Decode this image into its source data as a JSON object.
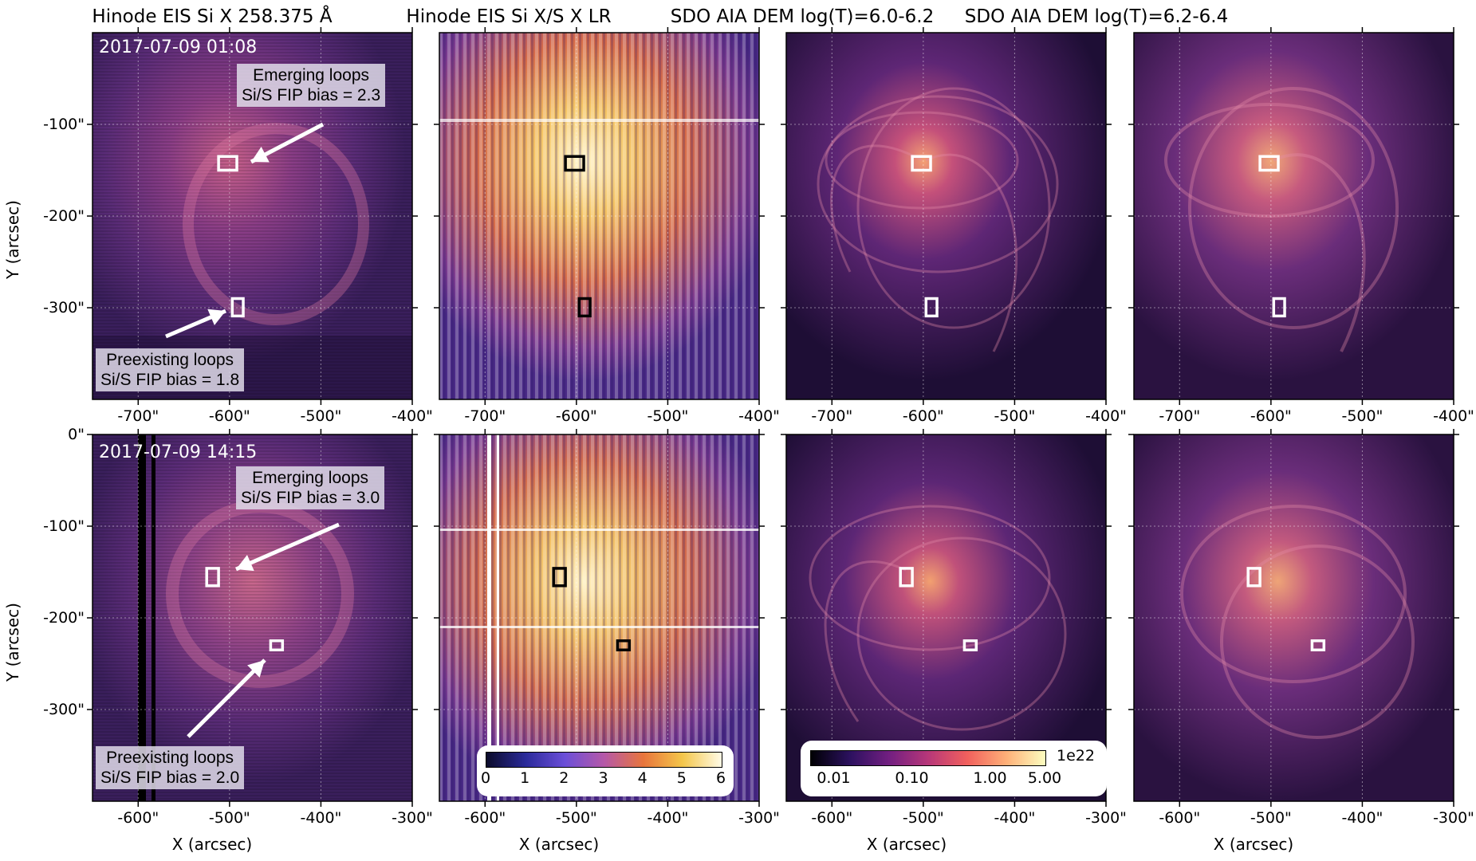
{
  "panel_titles": {
    "eis_si": "Hinode EIS Si X 258.375 Å",
    "eis_ratio": "Hinode EIS Si X/S X LR",
    "aia_low": "SDO AIA DEM log(T)=6.0-6.2",
    "aia_high": "SDO AIA DEM log(T)=6.2-6.4"
  },
  "rows": [
    {
      "date": "2017-07-09 01:08",
      "emerging": {
        "line1": "Emerging loops",
        "line2": "Si/S FIP bias = 2.3"
      },
      "preexisting": {
        "line1": "Preexisting loops",
        "line2": "Si/S FIP bias = 1.8"
      },
      "x_ticks": [
        "-700\"",
        "-600\"",
        "-500\"",
        "-400\""
      ],
      "x_tick_values": [
        -700,
        -600,
        -500,
        -400
      ],
      "x_range": [
        -750,
        -400
      ],
      "y_ticks": [
        "-100\"",
        "-200\"",
        "-300\""
      ],
      "y_tick_values": [
        -100,
        -200,
        -300
      ],
      "y_range": [
        -400,
        0
      ],
      "boxes": [
        {
          "kind": "emerging",
          "x": [
            -612,
            -592
          ],
          "y": [
            -135,
            -150
          ]
        },
        {
          "kind": "preexisting",
          "x": [
            -597,
            -585
          ],
          "y": [
            -290,
            -309
          ]
        }
      ]
    },
    {
      "date": "2017-07-09 14:15",
      "emerging": {
        "line1": "Emerging loops",
        "line2": "Si/S FIP bias = 3.0"
      },
      "preexisting": {
        "line1": "Preexisting loops",
        "line2": "Si/S FIP bias = 2.0"
      },
      "x_ticks": [
        "-600\"",
        "-500\"",
        "-400\"",
        "-300\""
      ],
      "x_tick_values": [
        -600,
        -500,
        -400,
        -300
      ],
      "x_range": [
        -650,
        -300
      ],
      "y_ticks": [
        "0\"",
        "-100\"",
        "-200\"",
        "-300\""
      ],
      "y_tick_values": [
        0,
        -100,
        -200,
        -300
      ],
      "y_range": [
        -400,
        0
      ],
      "boxes": [
        {
          "kind": "emerging",
          "x": [
            -525,
            -512
          ],
          "y": [
            -146,
            -165
          ]
        },
        {
          "kind": "preexisting",
          "x": [
            -455,
            -442
          ],
          "y": [
            -225,
            -235
          ]
        }
      ]
    }
  ],
  "axis_labels": {
    "x": "X (arcsec)",
    "y": "Y (arcsec)"
  },
  "colorbars": {
    "ratio": {
      "ticks": [
        "0",
        "1",
        "2",
        "3",
        "4",
        "5",
        "6"
      ],
      "range": [
        0,
        6
      ]
    },
    "dem": {
      "ticks": [
        "0.01",
        "0.10",
        "1.00",
        "5.00"
      ],
      "multiplier": "1e22"
    }
  },
  "colors": {
    "magma_dark": "#1a0a2e",
    "magma_mid": "#6b2a7a",
    "magma_bright": "#f6a96a",
    "box_white": "#ffffff",
    "box_black": "#000000"
  }
}
